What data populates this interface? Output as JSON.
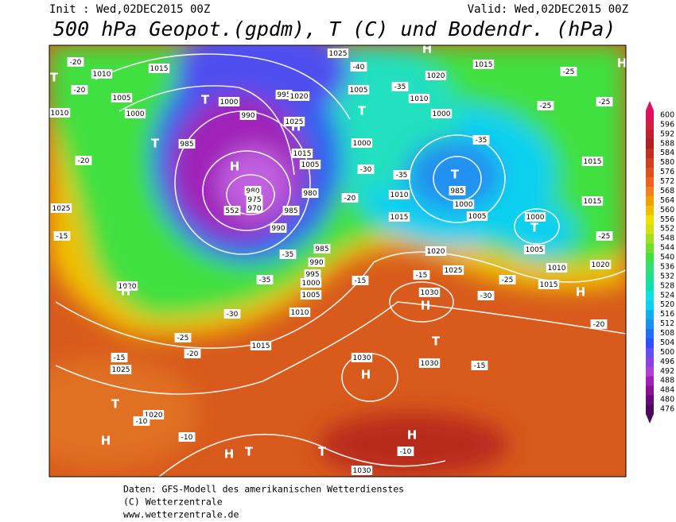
{
  "header": {
    "init": "Init : Wed,02DEC2015 00Z",
    "valid": "Valid: Wed,02DEC2015 00Z",
    "title": "500 hPa Geopot.(gpdm), T (C) und Bodendr. (hPa)"
  },
  "map": {
    "labels": [
      "-20",
      "1010",
      "1015",
      "T",
      "-20",
      "1005",
      "T",
      "1000",
      "1010",
      "1000",
      "990",
      "985",
      "T",
      "H",
      "980",
      "975",
      "970",
      "T",
      "995",
      "1020",
      "H",
      "1025",
      "1015",
      "1005",
      "980",
      "985",
      "990",
      "-35",
      "985",
      "990",
      "995",
      "1000",
      "1005",
      "1010",
      "1015",
      "-35",
      "-30",
      "-25",
      "-20",
      "1025",
      "-40",
      "1005",
      "T",
      "1000",
      "-30",
      "-20",
      "1020",
      "1015",
      "H",
      "1010",
      "1000",
      "-35",
      "-35",
      "T",
      "985",
      "1000",
      "1005",
      "1010",
      "1015",
      "-35",
      "1000",
      "T",
      "1005",
      "1010",
      "1015",
      "1015",
      "1015",
      "1020",
      "H",
      "-25",
      "-25",
      "-25",
      "H",
      "-25",
      "1020",
      "1025",
      "-15",
      "-15",
      "-25",
      "1030",
      "H",
      "T",
      "1030",
      "H",
      "1030",
      "-15",
      "H",
      "-10",
      "1030",
      "T",
      "H",
      "T",
      "-10",
      "1020",
      "-10",
      "T",
      "H",
      "-15",
      "1025",
      "1020",
      "H",
      "-15",
      "1025",
      "-20",
      "-20",
      "-30",
      "552"
    ]
  },
  "colorbar": {
    "ticks": [
      476,
      480,
      484,
      488,
      492,
      496,
      500,
      504,
      508,
      512,
      516,
      520,
      524,
      528,
      532,
      536,
      540,
      544,
      548,
      552,
      556,
      560,
      564,
      568,
      572,
      576,
      580,
      584,
      588,
      592,
      596,
      600
    ],
    "colors": [
      "#4b0a5a",
      "#6a0a7a",
      "#8a1096",
      "#a020b8",
      "#b040d0",
      "#9040e0",
      "#6050f0",
      "#3050f0",
      "#2070f0",
      "#1a90f0",
      "#10b0f0",
      "#10d0f0",
      "#10e0e0",
      "#10e0b0",
      "#20e090",
      "#30e070",
      "#40e040",
      "#70e030",
      "#a0e020",
      "#d0e010",
      "#f0e000",
      "#f0c000",
      "#f0a000",
      "#f08020",
      "#f06020",
      "#e05020",
      "#d04020",
      "#c03020",
      "#b02020",
      "#c02030",
      "#d02040",
      "#e01060"
    ]
  },
  "footer": {
    "lines": [
      "Daten: GFS-Modell des amerikanischen Wetterdienstes",
      "(C) Wetterzentrale",
      "www.wetterzentrale.de"
    ]
  }
}
